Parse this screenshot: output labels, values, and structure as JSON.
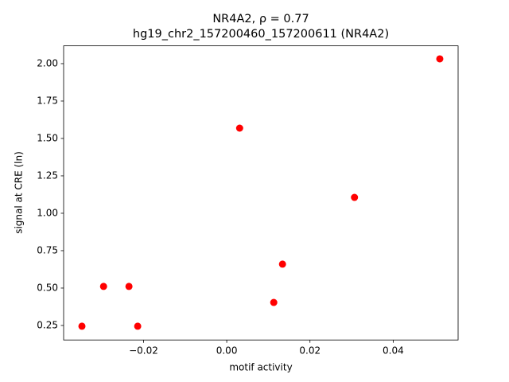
{
  "chart_data": {
    "type": "scatter",
    "title": "NR4A2, ρ = 0.77",
    "subtitle": "hg19_chr2_157200460_157200611 (NR4A2)",
    "x_label": "motif activity",
    "y_label": "signal at CRE (ln)",
    "series": [
      {
        "color": "#ff0000",
        "x": [
          0.0512,
          0.0031,
          0.0307,
          0.0134,
          0.0113,
          -0.0296,
          -0.0235,
          -0.0348,
          -0.0214
        ],
        "values": [
          2.032,
          1.569,
          1.106,
          0.66,
          0.404,
          0.511,
          0.511,
          0.245,
          0.245
        ]
      }
    ],
    "xlim": [
      -0.0392,
      0.0556
    ],
    "ylim": [
      0.153,
      2.119
    ],
    "xticks": [
      {
        "value": -0.02,
        "label": "−0.02"
      },
      {
        "value": 0,
        "label": "0.00"
      },
      {
        "value": 0.02,
        "label": "0.02"
      },
      {
        "value": 0.04,
        "label": "0.04"
      }
    ],
    "yticks": [
      0.25,
      {
        "value": 0.5,
        "label": "0.50"
      },
      0.75,
      {
        "value": 1,
        "label": "1.00"
      },
      1.25,
      {
        "value": 1.5,
        "label": "1.50"
      },
      1.75,
      {
        "value": 2,
        "label": "2.00"
      }
    ],
    "grid": false
  }
}
